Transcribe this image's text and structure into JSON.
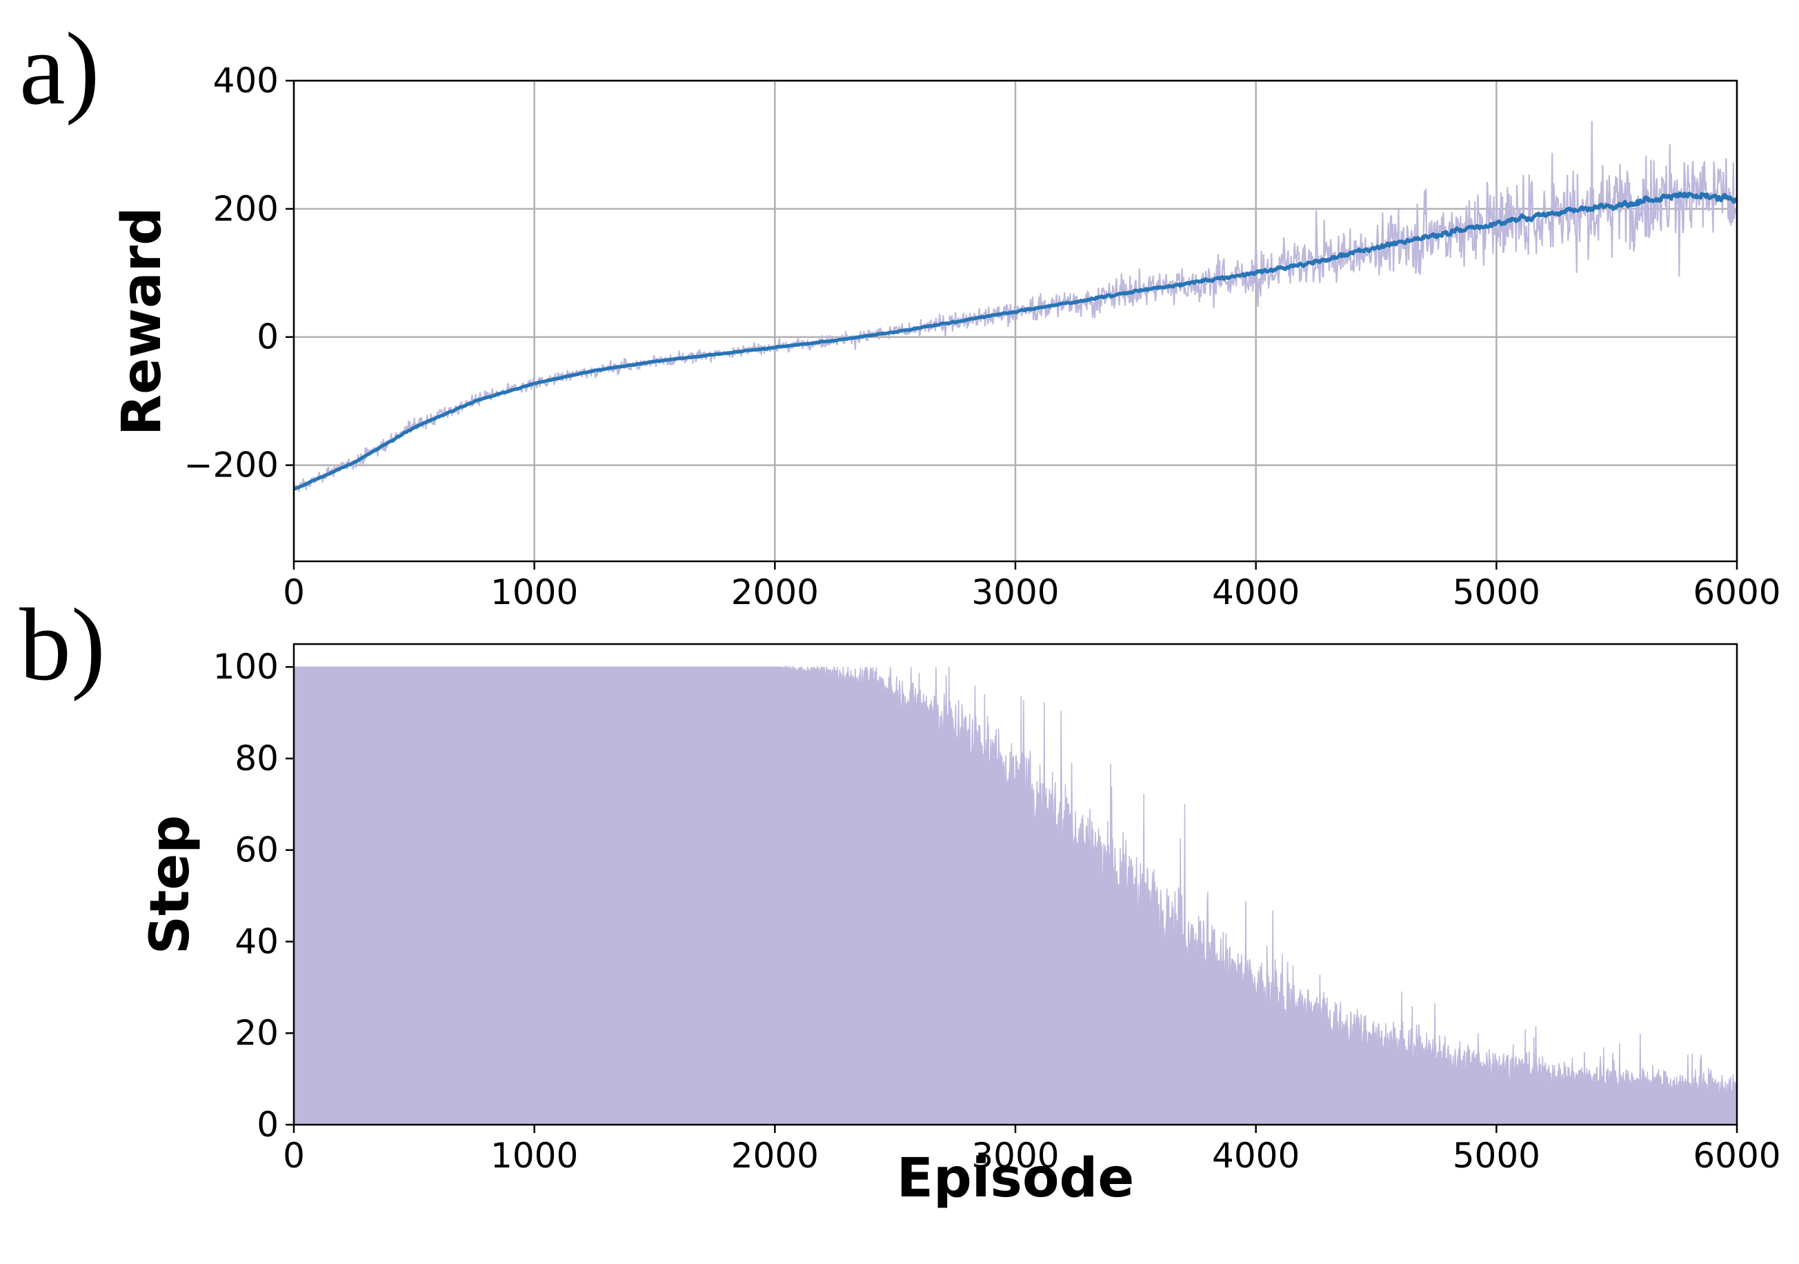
{
  "chart_data": [
    {
      "type": "line",
      "panel_label": "a)",
      "xlabel": "",
      "ylabel": "Reward",
      "xlim": [
        0,
        6000
      ],
      "ylim": [
        -350,
        400
      ],
      "xticks": [
        0,
        1000,
        2000,
        3000,
        4000,
        5000,
        6000
      ],
      "xtick_labels": [
        "0",
        "1000",
        "2000",
        "3000",
        "4000",
        "5000",
        "6000"
      ],
      "yticks": [
        -200,
        0,
        200,
        400
      ],
      "ytick_labels": [
        "−200",
        "0",
        "200",
        "400"
      ],
      "grid": true,
      "colors": {
        "raw": "#bdb8dc",
        "smoothed": "#2674b6"
      },
      "series": [
        {
          "role": "raw",
          "x": [
            0,
            250,
            500,
            750,
            1000,
            1250,
            1500,
            1750,
            2000,
            2250,
            2500,
            2750,
            3000,
            3250,
            3500,
            3750,
            4000,
            4250,
            4500,
            4750,
            5000,
            5250,
            5500,
            5750,
            6000
          ],
          "y": [
            -237,
            -195,
            -140,
            -100,
            -72,
            -52,
            -38,
            -27,
            -16,
            -5,
            8,
            24,
            40,
            55,
            72,
            86,
            100,
            118,
            140,
            160,
            178,
            195,
            205,
            222,
            215
          ],
          "band": [
            12,
            14,
            16,
            15,
            14,
            13,
            12,
            11,
            12,
            13,
            16,
            20,
            24,
            30,
            36,
            42,
            50,
            58,
            66,
            74,
            80,
            86,
            92,
            96,
            95
          ]
        },
        {
          "role": "smoothed",
          "x": [
            0,
            250,
            500,
            750,
            1000,
            1250,
            1500,
            1750,
            2000,
            2250,
            2500,
            2750,
            3000,
            3250,
            3500,
            3750,
            4000,
            4250,
            4500,
            4750,
            5000,
            5250,
            5500,
            5750,
            6000
          ],
          "y": [
            -237,
            -195,
            -140,
            -100,
            -72,
            -52,
            -38,
            -27,
            -16,
            -5,
            8,
            24,
            40,
            55,
            72,
            86,
            100,
            118,
            140,
            160,
            178,
            195,
            205,
            222,
            215
          ]
        }
      ]
    },
    {
      "type": "bar",
      "panel_label": "b)",
      "xlabel": "Episode",
      "ylabel": "Step",
      "xlim": [
        0,
        6000
      ],
      "ylim": [
        0,
        105
      ],
      "xticks": [
        0,
        1000,
        2000,
        3000,
        4000,
        5000,
        6000
      ],
      "xtick_labels": [
        "0",
        "1000",
        "2000",
        "3000",
        "4000",
        "5000",
        "6000"
      ],
      "yticks": [
        0,
        20,
        40,
        60,
        80,
        100
      ],
      "ytick_labels": [
        "0",
        "20",
        "40",
        "60",
        "80",
        "100"
      ],
      "grid": false,
      "colors": {
        "bars": "#bdb8dc"
      },
      "series": [
        {
          "x": [
            0,
            1000,
            2000,
            2200,
            2400,
            2600,
            2800,
            3000,
            3200,
            3400,
            3600,
            3800,
            4000,
            4250,
            4500,
            4750,
            5000,
            5250,
            5500,
            5750,
            6000
          ],
          "y": [
            100,
            100,
            100,
            99,
            97,
            92,
            85,
            76,
            66,
            56,
            47,
            38,
            30,
            24,
            19,
            15,
            13,
            11,
            10,
            9,
            8
          ],
          "spread": [
            0,
            0,
            0,
            3,
            6,
            10,
            12,
            14,
            16,
            17,
            16,
            14,
            12,
            10,
            9,
            8,
            7,
            6,
            6,
            5,
            5
          ]
        }
      ]
    }
  ]
}
